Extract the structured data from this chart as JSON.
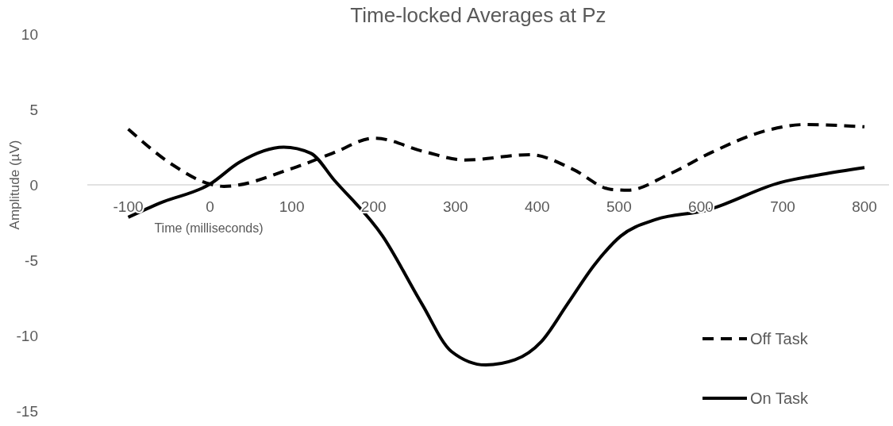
{
  "chart_data": {
    "type": "line",
    "title": "Time-locked Averages at Pz",
    "xlabel": "Time (milliseconds)",
    "ylabel": "Amplitude (µV)",
    "xlim": [
      -150,
      830
    ],
    "xticks": [
      -100,
      0,
      100,
      200,
      300,
      400,
      500,
      600,
      700,
      800
    ],
    "ylim": [
      -15,
      10
    ],
    "yticks": [
      -15,
      -10,
      -5,
      0,
      5,
      10
    ],
    "grid": false,
    "legend": "bottom right",
    "series": [
      {
        "name": "Off Task",
        "color": "#000000",
        "line_style": "dashed",
        "x": [
          -100,
          -45,
          0,
          17,
          101,
          150,
          201,
          262,
          311,
          392,
          443,
          490,
          511,
          561,
          613,
          680,
          727,
          800
        ],
        "values": [
          3.7,
          1.3,
          0.05,
          -0.1,
          1.1,
          2.1,
          3.1,
          2.2,
          1.65,
          2.0,
          1.05,
          -0.3,
          -0.35,
          0.7,
          2.15,
          3.6,
          4.0,
          3.85
        ]
      },
      {
        "name": "On Task",
        "color": "#000000",
        "line_style": "solid",
        "x": [
          -100,
          -61,
          0,
          36,
          90,
          123,
          152,
          211,
          259,
          295,
          337,
          373,
          405,
          437,
          470,
          502,
          545,
          606,
          697,
          748,
          800
        ],
        "values": [
          -2.15,
          -1.2,
          0.05,
          1.5,
          2.5,
          2.1,
          0.3,
          -3.4,
          -7.9,
          -11.05,
          -11.95,
          -11.6,
          -10.4,
          -7.9,
          -5.3,
          -3.4,
          -2.3,
          -1.7,
          0.15,
          0.7,
          1.15
        ]
      }
    ]
  }
}
